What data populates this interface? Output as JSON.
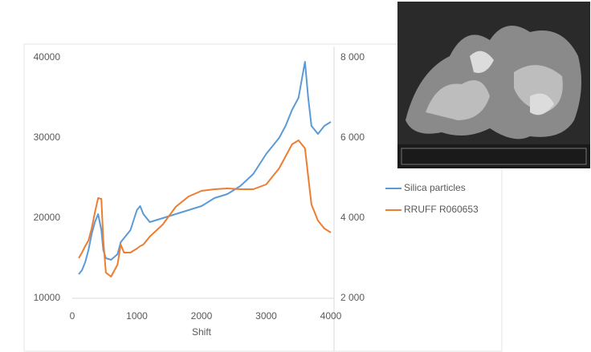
{
  "chart_data": {
    "type": "line",
    "x_label": "Shift",
    "x": [
      100,
      150,
      200,
      250,
      300,
      350,
      400,
      450,
      480,
      520,
      600,
      700,
      750,
      800,
      900,
      1000,
      1050,
      1100,
      1200,
      1400,
      1600,
      1800,
      2000,
      2200,
      2400,
      2600,
      2800,
      3000,
      3200,
      3300,
      3400,
      3500,
      3600,
      3650,
      3700,
      3800,
      3900,
      4000
    ],
    "series": [
      {
        "name": "Silica particles",
        "color": "#5b9bd5",
        "values": [
          13000,
          13500,
          14500,
          16000,
          18000,
          19500,
          20500,
          18500,
          16000,
          15000,
          14800,
          15500,
          17000,
          17500,
          18500,
          21000,
          21500,
          20500,
          19500,
          20000,
          20500,
          21000,
          21500,
          22500,
          23000,
          24000,
          25500,
          28000,
          30000,
          31500,
          33500,
          35000,
          39500,
          35000,
          31500,
          30500,
          31500,
          32000
        ]
      },
      {
        "name": "RRUFF R060653",
        "color": "#ed7d31",
        "axis": "y2",
        "values": [
          3000,
          3140,
          3300,
          3440,
          3740,
          4140,
          4500,
          4480,
          3440,
          2640,
          2540,
          2840,
          3340,
          3140,
          3140,
          3240,
          3300,
          3340,
          3540,
          3840,
          4280,
          4540,
          4680,
          4720,
          4740,
          4720,
          4720,
          4840,
          5240,
          5540,
          5840,
          5940,
          5740,
          5040,
          4340,
          3940,
          3740,
          3640
        ]
      }
    ],
    "xlim": [
      0,
      4000
    ],
    "xticks": [
      0,
      1000,
      2000,
      3000,
      4000
    ],
    "ylim": [
      10000,
      40000
    ],
    "yticks": [
      10000,
      20000,
      30000,
      40000
    ],
    "y2lim": [
      2000,
      8000
    ],
    "y2ticks": [
      {
        "value": 2000,
        "label": "2 000"
      },
      {
        "value": 4000,
        "label": "4 000"
      },
      {
        "value": 6000,
        "label": "6 000"
      },
      {
        "value": 8000,
        "label": "8 000"
      }
    ],
    "legend": "right"
  }
}
